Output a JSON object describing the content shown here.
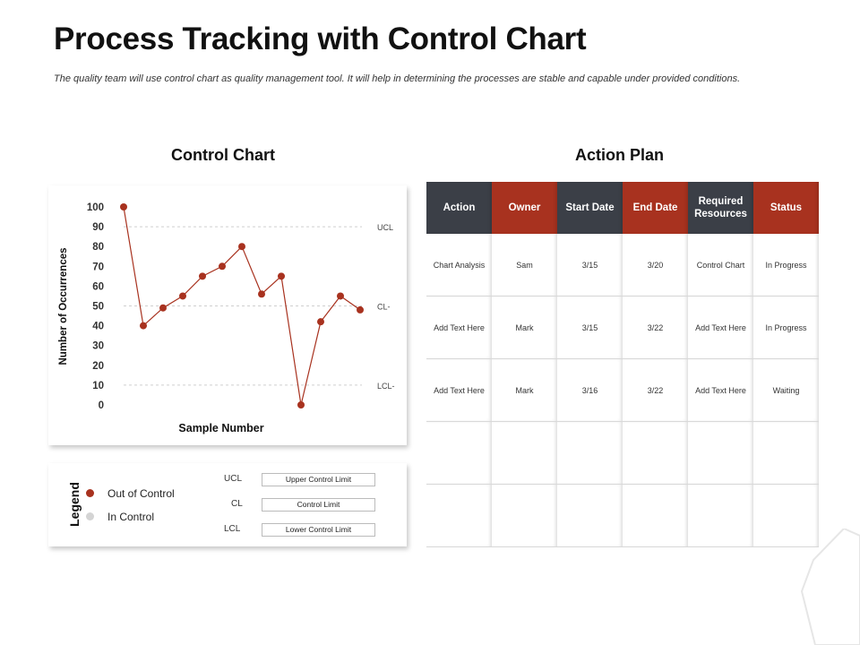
{
  "header": {
    "title": "Process Tracking with Control Chart",
    "subtitle": "The quality team will use control chart as quality management tool. It will help in determining the processes are stable and capable under provided conditions."
  },
  "sections": {
    "chart_heading": "Control Chart",
    "plan_heading": "Action Plan"
  },
  "colors": {
    "accent_red": "#a8321f",
    "header_dark": "#3b3f47",
    "in_control_grey": "#d4d4d4"
  },
  "chart_data": {
    "type": "line",
    "title": "",
    "xlabel": "Sample Number",
    "ylabel": "Number of Occurrences",
    "ylim": [
      0,
      100
    ],
    "yticks": [
      0,
      10,
      20,
      30,
      40,
      50,
      60,
      70,
      80,
      90,
      100
    ],
    "x": [
      1,
      2,
      3,
      4,
      5,
      6,
      7,
      8,
      9,
      10,
      11,
      12,
      13
    ],
    "series": [
      {
        "values": [
          100,
          40,
          49,
          55,
          65,
          70,
          80,
          56,
          65,
          0,
          42,
          55,
          48
        ]
      }
    ],
    "control_lines": [
      {
        "label": "UCL",
        "value": 90
      },
      {
        "label": "CL-",
        "value": 50
      },
      {
        "label": "LCL-",
        "value": 10
      }
    ],
    "grid": false
  },
  "legend": {
    "title": "Legend",
    "items": [
      {
        "label": "Out of Control",
        "color": "#a8321f"
      },
      {
        "label": "In Control",
        "color": "#d4d4d4"
      }
    ],
    "limits": [
      {
        "abbr": "UCL",
        "name": "Upper Control Limit"
      },
      {
        "abbr": "CL",
        "name": "Control Limit"
      },
      {
        "abbr": "LCL",
        "name": "Lower Control Limit"
      }
    ]
  },
  "action_plan": {
    "columns": [
      "Action",
      "Owner",
      "Start Date",
      "End Date",
      "Required Resources",
      "Status"
    ],
    "rows": [
      [
        "Chart Analysis",
        "Sam",
        "3/15",
        "3/20",
        "Control Chart",
        "In Progress"
      ],
      [
        "Add Text Here",
        "Mark",
        "3/15",
        "3/22",
        "Add Text Here",
        "In Progress"
      ],
      [
        "Add Text Here",
        "Mark",
        "3/16",
        "3/22",
        "Add Text Here",
        "Waiting"
      ],
      [
        "",
        "",
        "",
        "",
        "",
        ""
      ],
      [
        "",
        "",
        "",
        "",
        "",
        ""
      ]
    ]
  }
}
